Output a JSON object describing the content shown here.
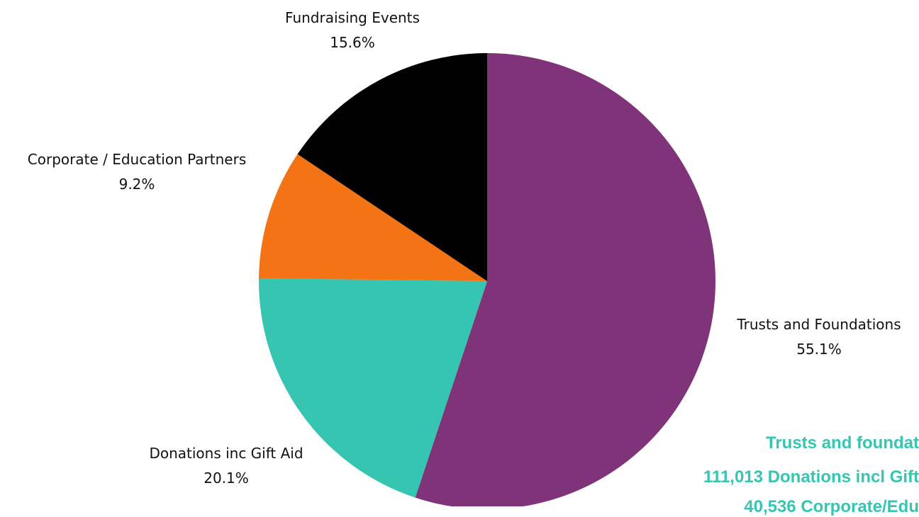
{
  "chart_data": {
    "type": "pie",
    "title": "",
    "slices": [
      {
        "name": "Trusts and Foundations",
        "value": 55.1,
        "label": "55.1%",
        "color": "#7f347a"
      },
      {
        "name": "Donations inc Gift Aid",
        "value": 20.1,
        "label": "20.1%",
        "color": "#36c5b1"
      },
      {
        "name": "Corporate / Education Partners",
        "value": 9.2,
        "label": "9.2%",
        "color": "#f47315"
      },
      {
        "name": "Fundraising Events",
        "value": 15.6,
        "label": "15.6%",
        "color": "#000000"
      }
    ],
    "start_angle": "12 o'clock",
    "direction": "clockwise"
  },
  "overlay_text": {
    "line1": "Trusts and foundat",
    "line2": "111,013 Donations incl Gift",
    "line3": "40,536 Corporate/Edu"
  }
}
